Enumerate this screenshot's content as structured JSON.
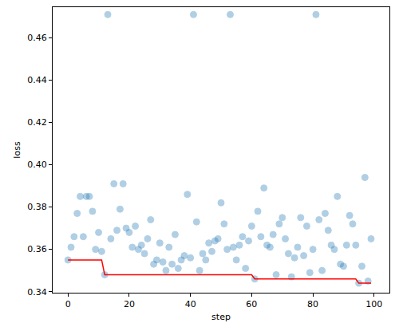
{
  "chart_data": {
    "type": "scatter",
    "x_label": "step",
    "y_label": "loss",
    "x": [
      0,
      1,
      2,
      3,
      4,
      5,
      6,
      7,
      8,
      9,
      10,
      11,
      12,
      13,
      14,
      15,
      16,
      17,
      18,
      19,
      20,
      21,
      22,
      23,
      24,
      25,
      26,
      27,
      28,
      29,
      30,
      31,
      32,
      33,
      34,
      35,
      36,
      37,
      38,
      39,
      40,
      41,
      42,
      43,
      44,
      45,
      46,
      47,
      48,
      49,
      50,
      51,
      52,
      53,
      54,
      55,
      56,
      57,
      58,
      59,
      60,
      61,
      62,
      63,
      64,
      65,
      66,
      67,
      68,
      69,
      70,
      71,
      72,
      73,
      74,
      75,
      76,
      77,
      78,
      79,
      80,
      81,
      82,
      83,
      84,
      85,
      86,
      87,
      88,
      89,
      90,
      91,
      92,
      93,
      94,
      95,
      96,
      97,
      98,
      99
    ],
    "series": [
      {
        "type": "scatter",
        "color": "#1f77b4",
        "marker": "circle",
        "values": [
          0.355,
          0.361,
          0.366,
          0.377,
          0.385,
          0.366,
          0.385,
          0.385,
          0.378,
          0.36,
          0.368,
          0.359,
          0.348,
          0.471,
          0.365,
          0.391,
          0.369,
          0.379,
          0.391,
          0.37,
          0.368,
          0.361,
          0.371,
          0.36,
          0.362,
          0.358,
          0.365,
          0.374,
          0.353,
          0.355,
          0.363,
          0.354,
          0.35,
          0.361,
          0.353,
          0.367,
          0.351,
          0.355,
          0.357,
          0.386,
          0.356,
          0.471,
          0.373,
          0.35,
          0.358,
          0.355,
          0.363,
          0.359,
          0.364,
          0.365,
          0.382,
          0.372,
          0.36,
          0.471,
          0.361,
          0.355,
          0.362,
          0.366,
          0.351,
          0.364,
          0.371,
          0.346,
          0.378,
          0.366,
          0.389,
          0.362,
          0.361,
          0.367,
          0.348,
          0.372,
          0.375,
          0.365,
          0.358,
          0.347,
          0.356,
          0.361,
          0.375,
          0.357,
          0.371,
          0.349,
          0.36,
          0.471,
          0.374,
          0.35,
          0.377,
          0.369,
          0.362,
          0.36,
          0.385,
          0.353,
          0.352,
          0.362,
          0.376,
          0.372,
          0.362,
          0.344,
          0.352,
          0.394,
          0.345,
          0.365
        ]
      },
      {
        "type": "line",
        "color": "#ff0000",
        "line_style": "solid",
        "values": [
          0.355,
          0.355,
          0.355,
          0.355,
          0.355,
          0.355,
          0.355,
          0.355,
          0.355,
          0.355,
          0.355,
          0.355,
          0.348,
          0.348,
          0.348,
          0.348,
          0.348,
          0.348,
          0.348,
          0.348,
          0.348,
          0.348,
          0.348,
          0.348,
          0.348,
          0.348,
          0.348,
          0.348,
          0.348,
          0.348,
          0.348,
          0.348,
          0.348,
          0.348,
          0.348,
          0.348,
          0.348,
          0.348,
          0.348,
          0.348,
          0.348,
          0.348,
          0.348,
          0.348,
          0.348,
          0.348,
          0.348,
          0.348,
          0.348,
          0.348,
          0.348,
          0.348,
          0.348,
          0.348,
          0.348,
          0.348,
          0.348,
          0.348,
          0.348,
          0.348,
          0.348,
          0.346,
          0.346,
          0.346,
          0.346,
          0.346,
          0.346,
          0.346,
          0.346,
          0.346,
          0.346,
          0.346,
          0.346,
          0.346,
          0.346,
          0.346,
          0.346,
          0.346,
          0.346,
          0.346,
          0.346,
          0.346,
          0.346,
          0.346,
          0.346,
          0.346,
          0.346,
          0.346,
          0.346,
          0.346,
          0.346,
          0.346,
          0.346,
          0.346,
          0.346,
          0.344,
          0.344,
          0.344,
          0.344,
          0.344
        ]
      }
    ],
    "xlim": [
      -5,
      105
    ],
    "xticks": [
      0,
      20,
      40,
      60,
      80,
      100
    ],
    "ylim": [
      0.3395,
      0.4745
    ],
    "yticks": [
      0.34,
      0.36,
      0.38,
      {
        "value": 0.4,
        "label": "0.40"
      },
      0.42,
      0.44,
      0.46
    ],
    "grid": false
  }
}
